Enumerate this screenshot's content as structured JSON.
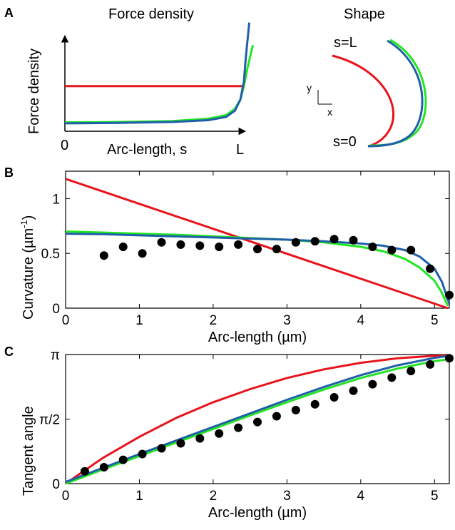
{
  "colors": {
    "red": "#e8131b",
    "green": "#22e622",
    "blue": "#1f5fa8",
    "points": "#000000"
  },
  "panels": {
    "a": {
      "letter": "A",
      "force_title": "Force density",
      "force_ylabel": "Force density",
      "force_xlabel": "Arc-length, s",
      "x_start": "0",
      "x_end": "L",
      "shape_title": "Shape",
      "s_end_label": "s=L",
      "s_start_label": "s=0",
      "axis_y": "y",
      "axis_x": "x"
    },
    "b": {
      "letter": "B"
    },
    "c": {
      "letter": "C"
    }
  },
  "chart_data": [
    {
      "id": "B",
      "type": "line",
      "xlabel": "Arc-length (µm)",
      "ylabel": "Curvature (µm",
      "ylabel_sup": "-1",
      "ylabel_close": ")",
      "xlim": [
        0,
        5.2
      ],
      "ylim": [
        0,
        1.25
      ],
      "xticks": [
        0,
        1,
        2,
        3,
        4,
        5
      ],
      "xtick_labels": [
        "0",
        "1",
        "2",
        "3",
        "4",
        "5"
      ],
      "yticks": [
        0,
        0.5,
        1
      ],
      "ytick_labels": [
        "0",
        "0.5",
        "1"
      ],
      "series": [
        {
          "color": "red",
          "x": [
            0,
            5.18
          ],
          "y": [
            1.18,
            0
          ]
        },
        {
          "color": "green",
          "x": [
            0,
            0.5,
            1,
            1.5,
            2,
            2.5,
            3,
            3.5,
            4,
            4.3,
            4.6,
            4.8,
            5.0,
            5.1,
            5.18
          ],
          "y": [
            0.7,
            0.69,
            0.68,
            0.67,
            0.655,
            0.64,
            0.625,
            0.6,
            0.56,
            0.52,
            0.45,
            0.37,
            0.25,
            0.14,
            0.02
          ]
        },
        {
          "color": "blue",
          "x": [
            0,
            0.5,
            1,
            1.5,
            2,
            2.5,
            3,
            3.5,
            4,
            4.3,
            4.6,
            4.8,
            5.0,
            5.1,
            5.2
          ],
          "y": [
            0.68,
            0.675,
            0.665,
            0.655,
            0.645,
            0.635,
            0.625,
            0.61,
            0.59,
            0.57,
            0.53,
            0.47,
            0.36,
            0.24,
            0.04
          ]
        }
      ],
      "points": {
        "x": [
          0.52,
          0.78,
          1.04,
          1.3,
          1.56,
          1.82,
          2.08,
          2.34,
          2.6,
          2.86,
          3.12,
          3.38,
          3.64,
          3.9,
          4.16,
          4.42,
          4.68,
          4.94,
          5.2
        ],
        "y": [
          0.48,
          0.56,
          0.5,
          0.6,
          0.58,
          0.57,
          0.56,
          0.58,
          0.54,
          0.54,
          0.6,
          0.61,
          0.63,
          0.62,
          0.56,
          0.53,
          0.53,
          0.36,
          0.12
        ]
      }
    },
    {
      "id": "C",
      "type": "line",
      "xlabel": "Arc-length (µm)",
      "ylabel": "Tangent angle",
      "xlim": [
        0,
        5.2
      ],
      "ylim": [
        0,
        3.1416
      ],
      "xticks": [
        0,
        1,
        2,
        3,
        4,
        5
      ],
      "xtick_labels": [
        "0",
        "1",
        "2",
        "3",
        "4",
        "5"
      ],
      "yticks": [
        0,
        1.5708,
        3.1416
      ],
      "ytick_labels": [
        "0",
        "π/2",
        "π"
      ],
      "series": [
        {
          "color": "red",
          "x": [
            0,
            0.5,
            1,
            1.5,
            2,
            2.5,
            3,
            3.5,
            4,
            4.5,
            5,
            5.2
          ],
          "y": [
            0,
            0.62,
            1.14,
            1.6,
            1.98,
            2.3,
            2.57,
            2.78,
            2.94,
            3.05,
            3.11,
            3.12
          ]
        },
        {
          "color": "green",
          "x": [
            0,
            0.5,
            1,
            1.5,
            2,
            2.5,
            3,
            3.5,
            4,
            4.5,
            5,
            5.2
          ],
          "y": [
            0,
            0.34,
            0.67,
            1.0,
            1.33,
            1.66,
            1.98,
            2.29,
            2.57,
            2.8,
            2.98,
            3.03
          ]
        },
        {
          "color": "blue",
          "x": [
            0,
            0.5,
            1,
            1.5,
            2,
            2.5,
            3,
            3.5,
            4,
            4.5,
            5,
            5.2
          ],
          "y": [
            0.04,
            0.38,
            0.72,
            1.05,
            1.38,
            1.71,
            2.04,
            2.35,
            2.64,
            2.88,
            3.06,
            3.11
          ]
        }
      ],
      "points": {
        "x": [
          0.26,
          0.52,
          0.78,
          1.04,
          1.3,
          1.56,
          1.82,
          2.08,
          2.34,
          2.6,
          2.86,
          3.12,
          3.38,
          3.64,
          3.9,
          4.16,
          4.42,
          4.68,
          4.94,
          5.2
        ],
        "y": [
          0.3,
          0.4,
          0.58,
          0.72,
          0.86,
          0.98,
          1.1,
          1.22,
          1.36,
          1.5,
          1.64,
          1.79,
          1.93,
          2.1,
          2.26,
          2.42,
          2.58,
          2.74,
          2.9,
          3.05
        ]
      }
    }
  ],
  "panel_a_chart": {
    "type": "line",
    "curves": [
      {
        "color": "red",
        "x": [
          0,
          1
        ],
        "y": [
          0.45,
          0.45
        ]
      },
      {
        "color": "green",
        "x": [
          0,
          0.3,
          0.6,
          0.8,
          0.9,
          0.95,
          0.98,
          1.0,
          1.02,
          1.05
        ],
        "y": [
          0.05,
          0.055,
          0.065,
          0.09,
          0.13,
          0.2,
          0.3,
          0.45,
          0.65,
          0.9
        ]
      },
      {
        "color": "blue",
        "x": [
          0,
          0.3,
          0.6,
          0.8,
          0.9,
          0.95,
          0.98,
          1.0,
          1.01,
          1.03
        ],
        "y": [
          0.04,
          0.045,
          0.055,
          0.075,
          0.11,
          0.18,
          0.3,
          0.5,
          0.75,
          1.15
        ]
      }
    ]
  }
}
